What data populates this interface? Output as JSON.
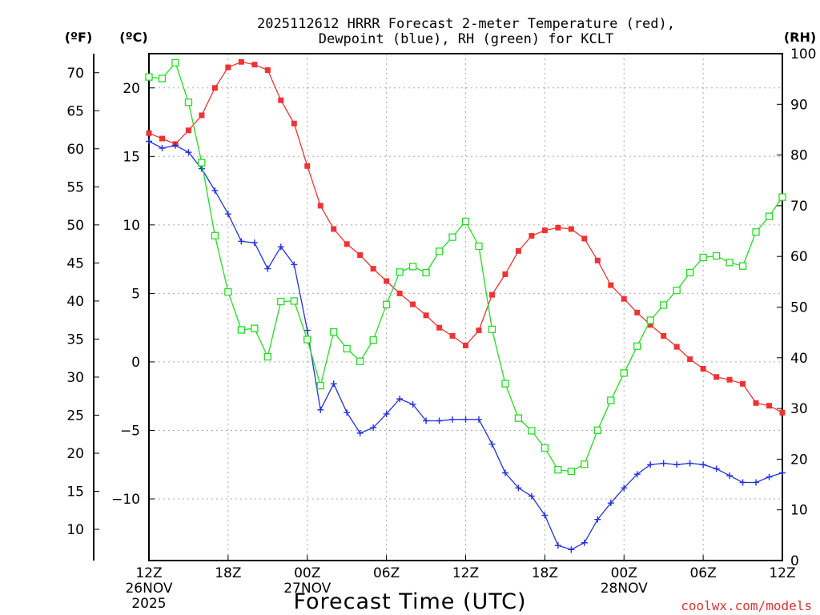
{
  "chart_data": {
    "type": "line",
    "title_line1": "2025112612 HRRR Forecast 2-meter Temperature (red),",
    "title_line2": "Dewpoint (blue), RH (green) for KCLT",
    "xlabel": "Forecast Time (UTC)",
    "ylabel_f": "(ºF)",
    "ylabel_c": "(ºC)",
    "ylabel_rh": "(RH)",
    "credit": "coolwx.com/models",
    "x_range_hours": [
      0,
      48
    ],
    "c_range": [
      -14.5,
      22.5
    ],
    "rh_range": [
      0,
      100
    ],
    "grid": true,
    "x_ticks": [
      {
        "hour": 0,
        "label": "12Z",
        "line2": "26NOV",
        "line3": "2025"
      },
      {
        "hour": 6,
        "label": "18Z",
        "line2": "",
        "line3": ""
      },
      {
        "hour": 12,
        "label": "00Z",
        "line2": "27NOV",
        "line3": ""
      },
      {
        "hour": 18,
        "label": "06Z",
        "line2": "",
        "line3": ""
      },
      {
        "hour": 24,
        "label": "12Z",
        "line2": "",
        "line3": ""
      },
      {
        "hour": 30,
        "label": "18Z",
        "line2": "",
        "line3": ""
      },
      {
        "hour": 36,
        "label": "00Z",
        "line2": "28NOV",
        "line3": ""
      },
      {
        "hour": 42,
        "label": "06Z",
        "line2": "",
        "line3": ""
      },
      {
        "hour": 48,
        "label": "12Z",
        "line2": "",
        "line3": ""
      }
    ],
    "c_ticks": [
      {
        "value": 20,
        "label": "20"
      },
      {
        "value": 15,
        "label": "15"
      },
      {
        "value": 10,
        "label": "10"
      },
      {
        "value": 5,
        "label": "5"
      },
      {
        "value": 0,
        "label": "0"
      },
      {
        "value": -5,
        "label": "−5"
      },
      {
        "value": -10,
        "label": "−10"
      }
    ],
    "f_ticks": [
      {
        "value": 70,
        "label": "70"
      },
      {
        "value": 65,
        "label": "65"
      },
      {
        "value": 60,
        "label": "60"
      },
      {
        "value": 55,
        "label": "55"
      },
      {
        "value": 50,
        "label": "50"
      },
      {
        "value": 45,
        "label": "45"
      },
      {
        "value": 40,
        "label": "40"
      },
      {
        "value": 35,
        "label": "35"
      },
      {
        "value": 30,
        "label": "30"
      },
      {
        "value": 25,
        "label": "25"
      },
      {
        "value": 20,
        "label": "20"
      },
      {
        "value": 15,
        "label": "15"
      },
      {
        "value": 10,
        "label": "10"
      }
    ],
    "rh_ticks": [
      {
        "value": 100,
        "label": "100"
      },
      {
        "value": 90,
        "label": "90"
      },
      {
        "value": 80,
        "label": "80"
      },
      {
        "value": 70,
        "label": "70"
      },
      {
        "value": 60,
        "label": "60"
      },
      {
        "value": 50,
        "label": "50"
      },
      {
        "value": 40,
        "label": "40"
      },
      {
        "value": 30,
        "label": "30"
      },
      {
        "value": 20,
        "label": "20"
      },
      {
        "value": 10,
        "label": "10"
      },
      {
        "value": 0,
        "label": "0"
      }
    ],
    "series": [
      {
        "name": "2-meter Temperature (°C)",
        "color": "#ee3333",
        "axis": "c",
        "marker": "filled-square",
        "values": [
          16.7,
          16.3,
          15.9,
          16.9,
          18.0,
          20.0,
          21.5,
          21.9,
          21.7,
          21.3,
          19.1,
          17.4,
          14.3,
          11.4,
          9.7,
          8.6,
          7.8,
          6.8,
          5.9,
          5.0,
          4.2,
          3.4,
          2.5,
          1.9,
          1.2,
          2.3,
          4.9,
          6.4,
          8.1,
          9.2,
          9.6,
          9.8,
          9.7,
          9.0,
          7.4,
          5.6,
          4.6,
          3.6,
          2.7,
          1.9,
          1.1,
          0.2,
          -0.5,
          -1.1,
          -1.3,
          -1.6,
          -3.0,
          -3.2,
          -3.7
        ]
      },
      {
        "name": "Dewpoint (°C)",
        "color": "#2233dd",
        "axis": "c",
        "marker": "plus",
        "values": [
          16.1,
          15.6,
          15.8,
          15.3,
          14.1,
          12.5,
          10.8,
          8.8,
          8.7,
          6.8,
          8.4,
          7.1,
          2.3,
          -3.5,
          -1.6,
          -3.7,
          -5.2,
          -4.8,
          -3.8,
          -2.7,
          -3.1,
          -4.3,
          -4.3,
          -4.2,
          -4.2,
          -4.2,
          -6.0,
          -8.1,
          -9.2,
          -9.8,
          -11.2,
          -13.4,
          -13.7,
          -13.2,
          -11.5,
          -10.3,
          -9.2,
          -8.2,
          -7.5,
          -7.4,
          -7.5,
          -7.4,
          -7.5,
          -7.8,
          -8.3,
          -8.8,
          -8.8,
          -8.4,
          -8.1
        ]
      },
      {
        "name": "RH (%)",
        "color": "#22dd22",
        "axis": "rh",
        "marker": "open-square",
        "values": [
          95.4,
          95.1,
          98.2,
          90.4,
          78.5,
          64.1,
          53.0,
          45.5,
          45.8,
          40.2,
          51.1,
          51.2,
          43.6,
          34.5,
          45.1,
          41.8,
          39.3,
          43.5,
          50.5,
          56.9,
          58.0,
          56.8,
          61.0,
          63.8,
          66.9,
          62.0,
          45.6,
          34.9,
          28.1,
          25.6,
          22.2,
          17.9,
          17.6,
          19.0,
          25.7,
          31.6,
          37.0,
          42.3,
          47.4,
          50.4,
          53.3,
          56.8,
          59.8,
          60.1,
          58.8,
          58.1,
          64.8,
          67.9,
          71.7
        ]
      }
    ]
  }
}
